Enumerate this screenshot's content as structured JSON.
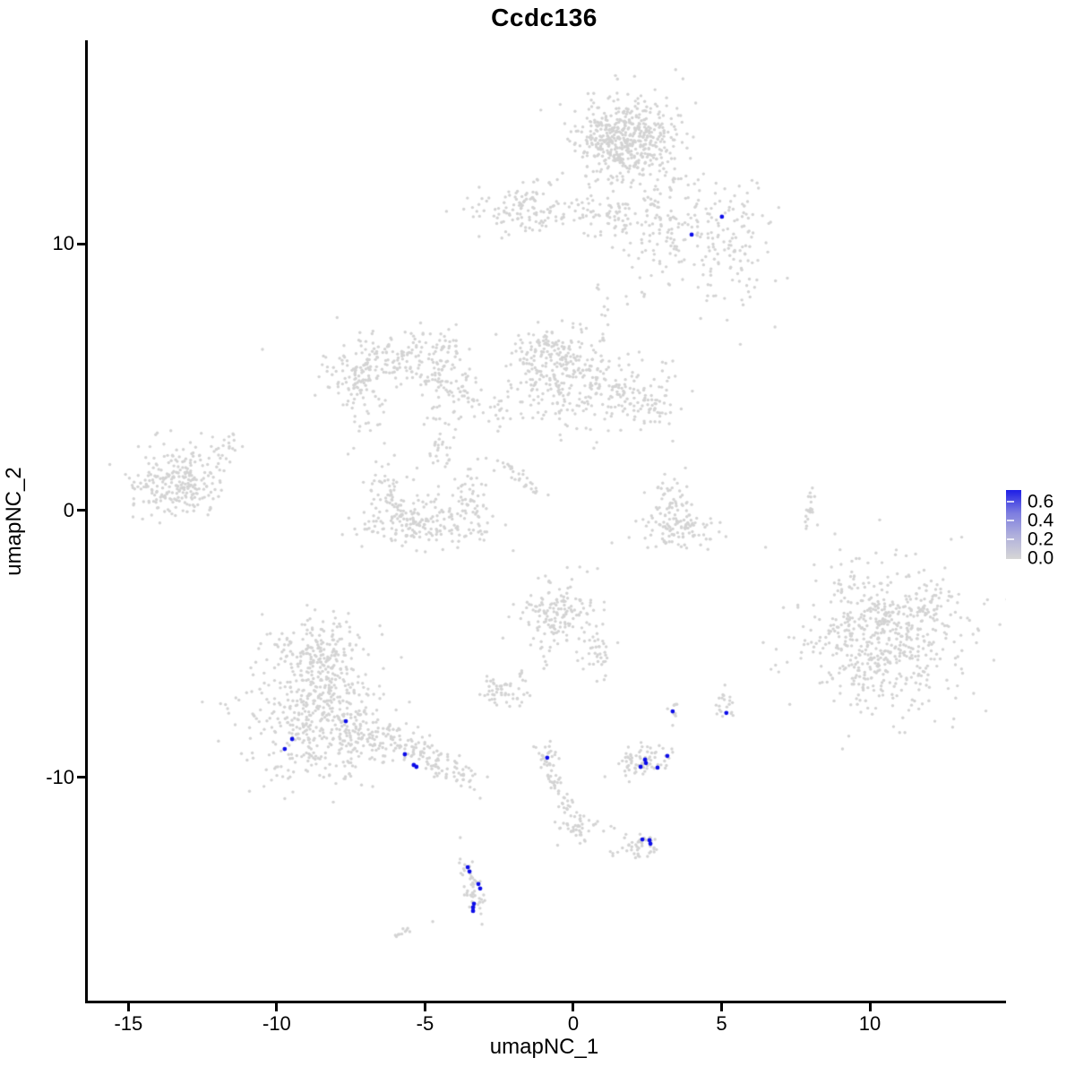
{
  "chart_data": {
    "type": "scatter",
    "title": "Ccdc136",
    "xlabel": "umapNC_1",
    "ylabel": "umapNC_2",
    "x_ticks": [
      -15,
      -10,
      -5,
      0,
      5,
      10
    ],
    "y_ticks": [
      10,
      0,
      -10
    ],
    "x_range": [
      -16.37,
      14.59
    ],
    "y_range": [
      -18.36,
      17.62
    ],
    "grid": false,
    "legend": {
      "position": "right",
      "labels": [
        "0.6",
        "0.4",
        "0.2",
        "0.0"
      ],
      "values": [
        0.6,
        0.4,
        0.2,
        0.0
      ],
      "gradient_top": "#1E1EE6",
      "gradient_mid1": "#7C7CE0",
      "gradient_mid2": "#B0B0DC",
      "gradient_bottom": "#D6D6D6"
    },
    "colors": {
      "base_point": "#D3D3D3",
      "highlight_point": "#0D0DE8"
    },
    "point_style": {
      "base_radius": 1.7,
      "highlight_radius": 2.4,
      "seed": 11
    },
    "clusters": {
      "blobs": [
        [
          1.75,
          13.93,
          0.82,
          0.75,
          520
        ],
        [
          2.96,
          10.74,
          0.91,
          1.17,
          150
        ],
        [
          5.22,
          10.23,
          0.76,
          1.28,
          130
        ],
        [
          -1.57,
          11.34,
          1.21,
          0.44,
          140
        ],
        [
          1.15,
          11.07,
          0.48,
          0.4,
          40
        ],
        [
          -7.31,
          4.87,
          0.6,
          0.84,
          130
        ],
        [
          -5.65,
          5.77,
          0.85,
          0.54,
          110
        ],
        [
          -4.44,
          4.77,
          0.66,
          0.4,
          65
        ],
        [
          -4.38,
          2.68,
          0.27,
          0.87,
          40
        ],
        [
          -4.14,
          6.31,
          0.27,
          0.47,
          22
        ],
        [
          -0.36,
          5.03,
          0.97,
          0.94,
          240
        ],
        [
          1.6,
          4.36,
          0.85,
          0.74,
          120
        ],
        [
          -0.97,
          6.04,
          0.54,
          0.4,
          60
        ],
        [
          2.81,
          4.03,
          0.36,
          0.3,
          25
        ],
        [
          -2.78,
          3.86,
          0.36,
          0.5,
          18
        ],
        [
          -13.35,
          1.01,
          0.79,
          0.67,
          250
        ],
        [
          -11.63,
          2.42,
          0.3,
          0.27,
          22
        ],
        [
          -5.04,
          -0.4,
          1.06,
          0.47,
          200
        ],
        [
          -6.31,
          0.74,
          0.3,
          0.54,
          45
        ],
        [
          -3.47,
          0.67,
          0.3,
          0.6,
          45
        ],
        [
          3.35,
          -0.74,
          0.69,
          0.37,
          100
        ],
        [
          3.32,
          0.47,
          0.33,
          0.47,
          45
        ],
        [
          10.51,
          -4.77,
          1.36,
          1.34,
          620
        ],
        [
          -0.45,
          -3.76,
          0.6,
          0.64,
          150
        ],
        [
          0.79,
          -5.2,
          0.36,
          0.47,
          40
        ],
        [
          -2.33,
          -6.78,
          0.39,
          0.27,
          50
        ],
        [
          -8.61,
          -7.45,
          1.15,
          1.34,
          500
        ],
        [
          -8.61,
          -5.3,
          0.66,
          0.6,
          120
        ],
        [
          -7.16,
          -8.32,
          0.54,
          0.44,
          80
        ],
        [
          -0.91,
          -9.26,
          0.21,
          0.34,
          30
        ],
        [
          0.0,
          -11.81,
          0.27,
          0.37,
          40
        ],
        [
          2.39,
          -9.36,
          0.48,
          0.3,
          75
        ],
        [
          3.35,
          -7.52,
          0.15,
          0.17,
          9
        ],
        [
          5.07,
          -7.25,
          0.21,
          0.27,
          20
        ],
        [
          2.3,
          -12.45,
          0.33,
          0.27,
          40
        ]
      ],
      "lines": [
        [
          -2.42,
          1.85,
          -1.12,
          0.57,
          0.1,
          28
        ],
        [
          8.09,
          0.91,
          7.85,
          -0.54,
          0.07,
          20
        ],
        [
          -6.4,
          -8.39,
          -3.38,
          -10.13,
          0.3,
          130
        ],
        [
          -0.76,
          -9.8,
          -0.12,
          -11.48,
          0.12,
          32
        ],
        [
          0.39,
          -11.41,
          1.3,
          -11.98,
          0.1,
          8
        ],
        [
          1.21,
          -12.95,
          1.9,
          -12.65,
          0.1,
          8
        ],
        [
          -3.62,
          -13.29,
          -3.17,
          -15.1,
          0.14,
          52
        ],
        [
          -6.07,
          -15.97,
          -5.59,
          -15.67,
          0.06,
          10
        ],
        [
          0.69,
          8.72,
          1.3,
          6.88,
          0.15,
          9
        ],
        [
          -1.12,
          -4.97,
          -0.88,
          -5.87,
          0.08,
          6
        ],
        [
          -1.81,
          -5.97,
          -1.57,
          -6.38,
          0.06,
          6
        ],
        [
          -3.62,
          4.36,
          -2.84,
          3.36,
          0.12,
          10
        ]
      ],
      "singles": [
        [
          -10.48,
          6.04
        ],
        [
          6.8,
          6.88
        ],
        [
          5.1,
          7.95
        ],
        [
          -4.74,
          -15.4
        ],
        [
          -3.81,
          -12.25
        ]
      ]
    },
    "highlight_points": [
      [
        5.01,
        11.01
      ],
      [
        3.99,
        10.34
      ],
      [
        -7.67,
        -7.89
      ],
      [
        -9.48,
        -8.56
      ],
      [
        -9.73,
        -8.93
      ],
      [
        -5.68,
        -9.13
      ],
      [
        -5.38,
        -9.53
      ],
      [
        -5.29,
        -9.6
      ],
      [
        -0.88,
        -9.26
      ],
      [
        2.42,
        -9.33
      ],
      [
        2.45,
        -9.46
      ],
      [
        2.27,
        -9.6
      ],
      [
        2.84,
        -9.63
      ],
      [
        3.17,
        -9.19
      ],
      [
        3.35,
        -7.52
      ],
      [
        5.16,
        -7.58
      ],
      [
        2.33,
        -12.32
      ],
      [
        2.57,
        -12.35
      ],
      [
        2.6,
        -12.48
      ],
      [
        -3.56,
        -13.36
      ],
      [
        -3.5,
        -13.52
      ],
      [
        -3.2,
        -13.99
      ],
      [
        -3.14,
        -14.16
      ],
      [
        -3.35,
        -14.73
      ],
      [
        -3.38,
        -14.87
      ],
      [
        -3.38,
        -15.0
      ]
    ]
  }
}
